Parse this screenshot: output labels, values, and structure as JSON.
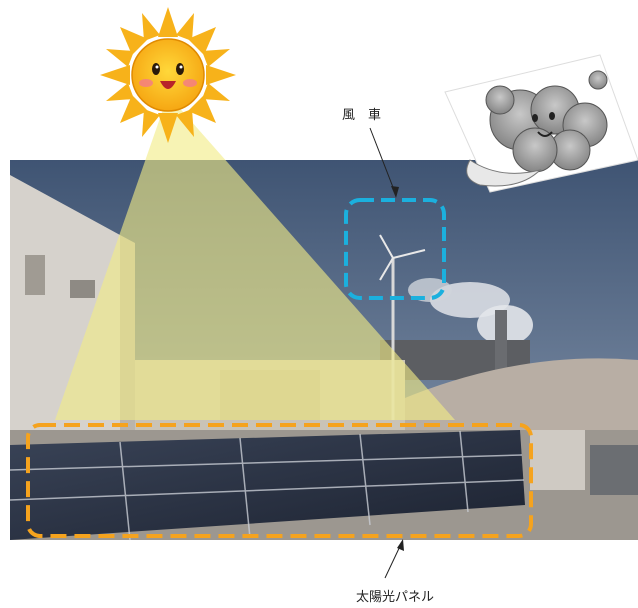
{
  "labels": {
    "windmill": "風　車",
    "solar_panel": "太陽光パネル"
  },
  "colors": {
    "sky": "#4f6380",
    "sun_beam": "#f2ec86",
    "windmill_box": "#1bb0de",
    "solar_box": "#f5a31e"
  },
  "icons": {
    "sun": "sun-mascot-icon",
    "cloud": "wind-cloud-mascot-icon"
  }
}
